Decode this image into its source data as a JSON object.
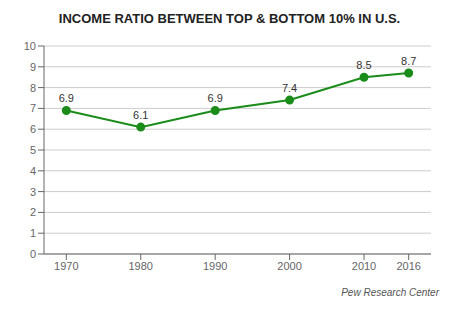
{
  "chart_data": {
    "type": "line",
    "title": "INCOME RATIO BETWEEN TOP & BOTTOM 10% IN U.S.",
    "x": [
      1970,
      1980,
      1990,
      2000,
      2010,
      2016
    ],
    "values": [
      6.9,
      6.1,
      6.9,
      7.4,
      8.5,
      8.7
    ],
    "color": "#1a8c1a",
    "marker": "circle",
    "data_labels": true,
    "xlim": [
      1967,
      2019
    ],
    "xticks": [
      1970,
      1980,
      1990,
      2000,
      2010,
      2016
    ],
    "ylim": [
      0,
      10
    ],
    "yticks": [
      0,
      1,
      2,
      3,
      4,
      5,
      6,
      7,
      8,
      9,
      10
    ],
    "grid": true,
    "annotations": [
      "Pew Research Center"
    ]
  }
}
